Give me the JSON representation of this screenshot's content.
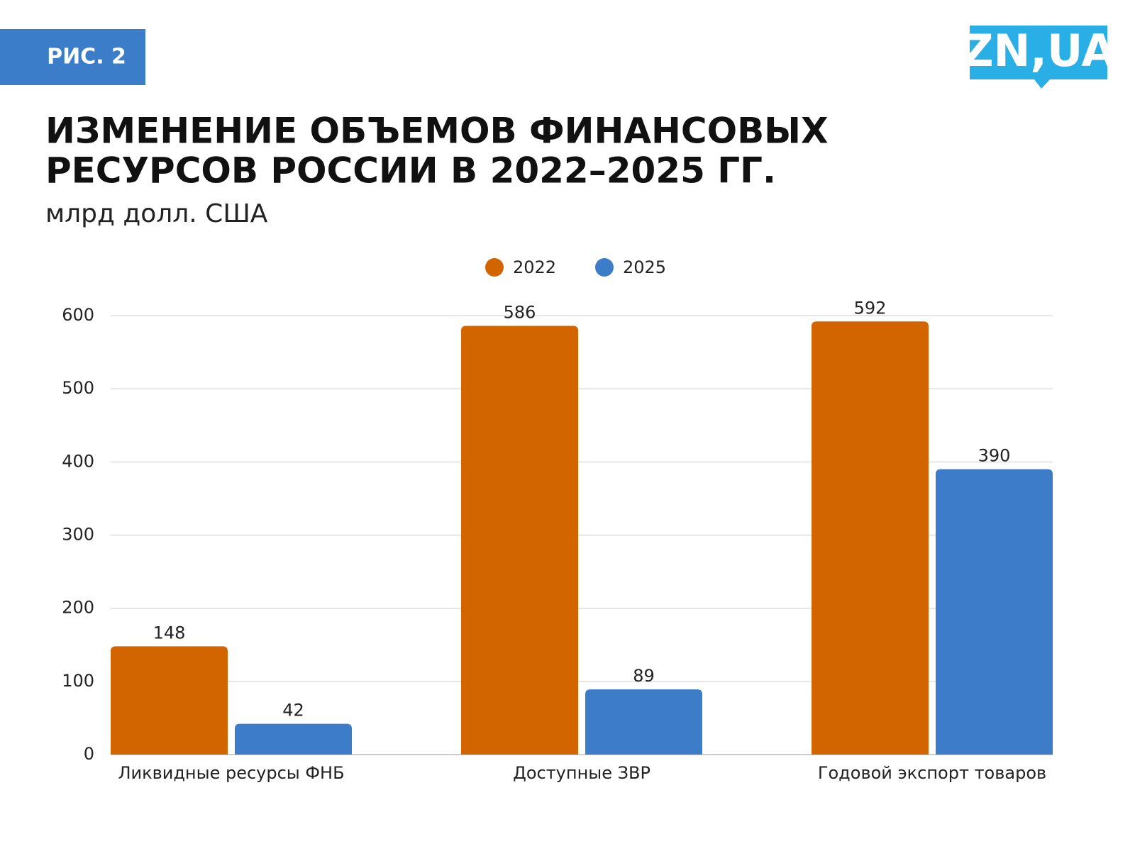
{
  "badge": "РИС. 2",
  "logo": "ZN,UA",
  "chart_data": {
    "type": "bar",
    "title": [
      "ИЗМЕНЕНИЕ ОБЪЕМОВ ФИНАНСОВЫХ",
      "РЕСУРСОВ РОССИИ В 2022–2025 ГГ."
    ],
    "subtitle": "млрд долл. США",
    "categories": [
      "Ликвидные ресурсы ФНБ",
      "Доступные ЗВР",
      "Годовой экспорт товаров"
    ],
    "series": [
      {
        "name": "2022",
        "color": "#d36500",
        "values": [
          148,
          586,
          592
        ]
      },
      {
        "name": "2025",
        "color": "#3d7cc9",
        "values": [
          42,
          89,
          390
        ]
      }
    ],
    "ylim": [
      0,
      600
    ],
    "yticks": [
      0,
      100,
      200,
      300,
      400,
      500,
      600
    ],
    "grid": true,
    "legend": "top"
  }
}
